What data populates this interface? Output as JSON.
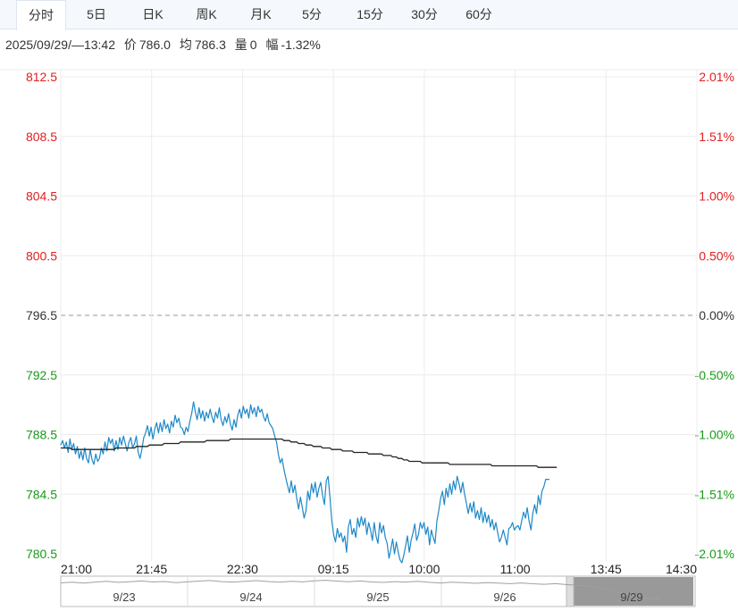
{
  "tabs": [
    {
      "label": "分时",
      "active": true
    },
    {
      "label": "5日",
      "active": false
    },
    {
      "label": "日K",
      "active": false
    },
    {
      "label": "周K",
      "active": false
    },
    {
      "label": "月K",
      "active": false
    },
    {
      "label": "5分",
      "active": false
    },
    {
      "label": "15分",
      "active": false
    },
    {
      "label": "30分",
      "active": false
    },
    {
      "label": "60分",
      "active": false
    }
  ],
  "info": {
    "datetime": "2025/09/29/—13:42",
    "price_label": "价",
    "price": "786.0",
    "avg_label": "均",
    "avg": "786.3",
    "volume_label": "量",
    "volume": "0",
    "change_label": "幅",
    "change": "-1.32%"
  },
  "colors": {
    "up": "#e02020",
    "down": "#1a9a1a",
    "flat": "#333333",
    "price_line": "#1e88c8",
    "avg_line": "#222222",
    "grid": "#ececec",
    "nav_line": "#a0a0a0",
    "nav_selected": "#999999"
  },
  "chart_data": {
    "type": "line",
    "prev_close": 796.5,
    "ylim": [
      780.5,
      812.5
    ],
    "y_ticks_left": [
      "812.5",
      "808.5",
      "804.5",
      "800.5",
      "796.5",
      "792.5",
      "788.5",
      "784.5",
      "780.5"
    ],
    "y_ticks_right": [
      "2.01%",
      "1.51%",
      "1.00%",
      "0.50%",
      "0.00%",
      "-0.50%",
      "-1.00%",
      "-1.51%",
      "-2.01%"
    ],
    "x_ticks": [
      "21:00",
      "21:45",
      "22:30",
      "09:15",
      "10:00",
      "11:00",
      "13:45",
      "14:30"
    ],
    "series": [
      {
        "values": [
          787.8,
          788.1,
          787.6,
          788.0,
          787.3,
          788.2,
          787.5,
          787.9,
          787.2,
          787.7,
          786.9,
          787.4,
          786.8,
          787.6,
          786.9,
          786.6,
          787.5,
          786.8,
          786.5,
          787.2,
          786.7,
          786.9,
          787.6,
          787.2,
          788.0,
          787.4,
          788.3,
          787.9,
          788.2,
          787.4,
          788.1,
          787.5,
          788.3,
          787.8,
          788.4,
          787.9,
          787.4,
          788.0,
          788.3,
          787.6,
          787.9,
          788.4,
          787.3,
          786.9,
          787.5,
          788.3,
          788.6,
          789.1,
          788.4,
          789.0,
          788.2,
          788.9,
          789.3,
          788.6,
          789.3,
          788.7,
          789.5,
          788.9,
          789.2,
          788.6,
          789.4,
          789.0,
          789.8,
          789.3,
          789.6,
          789.0,
          788.9,
          788.5,
          789.0,
          788.7,
          789.4,
          789.9,
          790.7,
          790.0,
          789.5,
          790.3,
          789.6,
          790.1,
          789.4,
          790.0,
          789.6,
          790.2,
          789.7,
          789.3,
          790.0,
          789.6,
          790.3,
          789.5,
          789.1,
          789.7,
          789.3,
          789.9,
          789.2,
          788.8,
          789.5,
          789.0,
          789.8,
          790.2,
          789.6,
          790.4,
          789.9,
          790.2,
          789.6,
          790.5,
          789.9,
          790.3,
          789.7,
          790.4,
          790.0,
          790.2,
          789.7,
          789.4,
          789.9,
          789.3,
          789.1,
          788.9,
          788.4,
          788.0,
          787.2,
          786.6,
          786.9,
          786.2,
          785.6,
          785.1,
          784.6,
          785.4,
          784.6,
          785.1,
          784.2,
          783.5,
          784.3,
          783.6,
          782.9,
          783.4,
          784.7,
          784.1,
          785.2,
          784.6,
          785.3,
          784.3,
          784.9,
          785.3,
          784.4,
          783.8,
          785.4,
          785.7,
          784.3,
          782.7,
          781.8,
          781.3,
          782.2,
          781.6,
          781.9,
          781.3,
          781.7,
          780.6,
          782.3,
          782.8,
          781.8,
          782.2,
          781.6,
          782.9,
          782.3,
          783.0,
          782.4,
          782.9,
          781.8,
          782.6,
          782.1,
          781.4,
          782.6,
          781.7,
          781.2,
          782.6,
          781.9,
          782.4,
          781.6,
          781.2,
          780.2,
          780.8,
          781.5,
          780.5,
          781.3,
          780.6,
          780.1,
          779.9,
          780.4,
          781.0,
          781.7,
          780.6,
          781.4,
          781.9,
          782.5,
          781.4,
          781.8,
          782.6,
          782.2,
          782.6,
          781.8,
          782.3,
          781.1,
          782.1,
          781.6,
          781.2,
          782.7,
          783.4,
          784.2,
          784.7,
          783.8,
          784.9,
          784.3,
          785.2,
          784.5,
          785.4,
          784.8,
          785.7,
          785.2,
          784.6,
          785.3,
          784.5,
          783.9,
          783.2,
          783.9,
          783.3,
          784.0,
          782.9,
          783.4,
          782.8,
          783.6,
          782.6,
          783.3,
          782.6,
          783.1,
          782.3,
          782.8,
          782.1,
          782.6,
          781.9,
          781.3,
          781.6,
          782.1,
          781.6,
          781.1,
          782.2,
          782.3,
          782.6,
          782.1,
          782.3,
          782.4,
          782.1,
          782.7,
          783.3,
          782.9,
          783.6,
          782.7,
          782.1,
          783.2,
          783.8,
          783.2,
          784.4,
          783.8,
          784.7,
          785.0,
          785.5,
          785.5,
          785.5
        ],
        "color": "#1e88c8"
      },
      {
        "values": [
          787.6,
          787.6,
          787.6,
          787.6,
          787.6,
          787.6,
          787.5,
          787.5,
          787.5,
          787.5,
          787.5,
          787.5,
          787.5,
          787.5,
          787.5,
          787.5,
          787.5,
          787.5,
          787.5,
          787.5,
          787.5,
          787.5,
          787.5,
          787.5,
          787.5,
          787.5,
          787.5,
          787.5,
          787.5,
          787.5,
          787.6,
          787.6,
          787.6,
          787.6,
          787.6,
          787.6,
          787.6,
          787.6,
          787.6,
          787.6,
          787.6,
          787.7,
          787.7,
          787.7,
          787.7,
          787.7,
          787.7,
          787.7,
          787.8,
          787.8,
          787.8,
          787.8,
          787.8,
          787.8,
          787.8,
          787.8,
          787.9,
          787.9,
          787.9,
          787.9,
          787.9,
          787.9,
          787.9,
          787.9,
          787.9,
          788.0,
          788.0,
          788.0,
          788.0,
          788.0,
          788.0,
          788.0,
          788.0,
          788.0,
          788.0,
          788.0,
          788.0,
          788.0,
          788.0,
          788.1,
          788.1,
          788.1,
          788.1,
          788.1,
          788.1,
          788.1,
          788.1,
          788.1,
          788.1,
          788.1,
          788.1,
          788.1,
          788.2,
          788.2,
          788.2,
          788.2,
          788.2,
          788.2,
          788.2,
          788.2,
          788.2,
          788.2,
          788.2,
          788.2,
          788.2,
          788.2,
          788.2,
          788.2,
          788.2,
          788.2,
          788.2,
          788.2,
          788.2,
          788.2,
          788.2,
          788.2,
          788.2,
          788.2,
          788.2,
          788.2,
          788.2,
          788.1,
          788.1,
          788.1,
          788.1,
          788.0,
          788.0,
          788.0,
          788.0,
          787.9,
          787.9,
          787.9,
          787.9,
          787.8,
          787.8,
          787.8,
          787.8,
          787.7,
          787.7,
          787.7,
          787.7,
          787.7,
          787.6,
          787.6,
          787.6,
          787.6,
          787.6,
          787.5,
          787.5,
          787.5,
          787.5,
          787.5,
          787.5,
          787.4,
          787.4,
          787.4,
          787.4,
          787.4,
          787.4,
          787.3,
          787.3,
          787.3,
          787.3,
          787.3,
          787.3,
          787.3,
          787.3,
          787.2,
          787.2,
          787.2,
          787.2,
          787.2,
          787.2,
          787.2,
          787.2,
          787.1,
          787.1,
          787.1,
          787.1,
          787.1,
          787.0,
          787.0,
          787.0,
          786.9,
          786.9,
          786.9,
          786.8,
          786.8,
          786.8,
          786.7,
          786.7,
          786.7,
          786.7,
          786.7,
          786.7,
          786.7,
          786.6,
          786.6,
          786.6,
          786.6,
          786.6,
          786.6,
          786.6,
          786.6,
          786.6,
          786.6,
          786.6,
          786.6,
          786.6,
          786.6,
          786.6,
          786.5,
          786.5,
          786.5,
          786.5,
          786.5,
          786.5,
          786.5,
          786.5,
          786.5,
          786.5,
          786.5,
          786.5,
          786.5,
          786.5,
          786.5,
          786.5,
          786.5,
          786.5,
          786.5,
          786.5,
          786.5,
          786.5,
          786.5,
          786.4,
          786.4,
          786.4,
          786.4,
          786.4,
          786.4,
          786.4,
          786.4,
          786.4,
          786.4,
          786.4,
          786.4,
          786.4,
          786.4,
          786.4,
          786.4,
          786.4,
          786.4,
          786.4,
          786.4,
          786.4,
          786.4,
          786.4,
          786.4,
          786.4,
          786.3,
          786.3,
          786.3,
          786.3,
          786.3,
          786.3,
          786.3,
          786.3,
          786.3,
          786.3,
          786.3
        ],
        "color": "#222222"
      }
    ],
    "total_slots": 345,
    "navigator": {
      "labels": [
        "9/23",
        "9/24",
        "9/25",
        "9/26",
        "9/29"
      ],
      "selected": "9/29",
      "values": [
        808,
        808.5,
        807.8,
        808.6,
        809.2,
        808.4,
        808.9,
        809.5,
        808.7,
        809.1,
        808.2,
        808.8,
        809.4,
        809.9,
        809.0,
        808.6,
        809.3,
        809.8,
        809.1,
        808.5,
        809.2,
        808.8,
        809.6,
        810.1,
        809.4,
        808.9,
        809.5,
        808.7,
        808.3,
        809.0,
        808.6,
        809.2,
        808.4,
        807.9,
        808.5,
        808.1,
        807.6,
        808.2,
        807.8,
        807.3,
        807.9,
        807.2,
        806.8,
        807.3,
        806.5,
        806.0,
        805.2,
        803.8,
        801.5,
        799.0,
        797.5,
        795.0,
        794.8
      ]
    }
  }
}
